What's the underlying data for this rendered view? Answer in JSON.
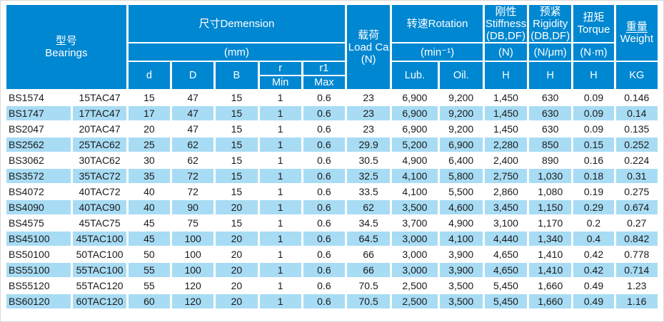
{
  "header": {
    "bearings": "型号\nBearings",
    "dimension": "尺寸Demension",
    "dimension_unit": "(mm)",
    "load": "载荷\nLoad Ca\n(N)",
    "rotation": "转速Rotation",
    "rotation_unit": "(min⁻¹)",
    "stiffness": "刚性\nStiffness\n(DB,DF)",
    "stiffness_unit": "(N)",
    "rigidity": "预紧\nRigidity\n(DB,DF)",
    "rigidity_unit": "(N/μm)",
    "torque": "扭矩\nTorque",
    "torque_unit": "(N·m)",
    "weight_cn": "重量",
    "weight_en": "Weight",
    "sub": {
      "d": "d",
      "D": "D",
      "B": "B",
      "r": "r",
      "r1": "r1",
      "min": "Min",
      "max": "Max",
      "lub": "Lub.",
      "oil": "Oil.",
      "stiffness_h": "H",
      "rigidity_h": "H",
      "torque_h": "H",
      "kg": "KG"
    }
  },
  "chart_data": {
    "type": "table",
    "columns": [
      "型号 Bearings (BS)",
      "型号 Bearings (TAC)",
      "d (mm)",
      "D (mm)",
      "B (mm)",
      "r Min (mm)",
      "r1 Max (mm)",
      "载荷 Load Ca (N)",
      "转速 Rotation Lub. (min⁻¹)",
      "转速 Rotation Oil. (min⁻¹)",
      "刚性 Stiffness H (N)",
      "预紧 Rigidity H (N/μm)",
      "扭矩 Torque H (N·m)",
      "重量 Weight KG"
    ],
    "rows": [
      [
        "BS1574",
        "15TAC47",
        "15",
        "47",
        "15",
        "1",
        "0.6",
        "23",
        "6,900",
        "9,200",
        "1,450",
        "630",
        "0.09",
        "0.146"
      ],
      [
        "BS1747",
        "17TAC47",
        "17",
        "47",
        "15",
        "1",
        "0.6",
        "23",
        "6,900",
        "9,200",
        "1,450",
        "630",
        "0.09",
        "0.14"
      ],
      [
        "BS2047",
        "20TAC47",
        "20",
        "47",
        "15",
        "1",
        "0.6",
        "23",
        "6,900",
        "9,200",
        "1,450",
        "630",
        "0.09",
        "0.135"
      ],
      [
        "BS2562",
        "25TAC62",
        "25",
        "62",
        "15",
        "1",
        "0.6",
        "29.9",
        "5,200",
        "6,900",
        "2,280",
        "850",
        "0.15",
        "0.252"
      ],
      [
        "BS3062",
        "30TAC62",
        "30",
        "62",
        "15",
        "1",
        "0.6",
        "30.5",
        "4,900",
        "6,400",
        "2,400",
        "890",
        "0.16",
        "0.224"
      ],
      [
        "BS3572",
        "35TAC72",
        "35",
        "72",
        "15",
        "1",
        "0.6",
        "32.5",
        "4,100",
        "5,800",
        "2,750",
        "1,030",
        "0.18",
        "0.31"
      ],
      [
        "BS4072",
        "40TAC72",
        "40",
        "72",
        "15",
        "1",
        "0.6",
        "33.5",
        "4,100",
        "5,500",
        "2,860",
        "1,080",
        "0.19",
        "0.275"
      ],
      [
        "BS4090",
        "40TAC90",
        "40",
        "90",
        "20",
        "1",
        "0.6",
        "62",
        "3,500",
        "4,600",
        "3,450",
        "1,150",
        "0.29",
        "0.674"
      ],
      [
        "BS4575",
        "45TAC75",
        "45",
        "75",
        "15",
        "1",
        "0.6",
        "34.5",
        "3,700",
        "4,900",
        "3,100",
        "1,170",
        "0.2",
        "0.27"
      ],
      [
        "BS45100",
        "45TAC100",
        "45",
        "100",
        "20",
        "1",
        "0.6",
        "64.5",
        "3,000",
        "4,100",
        "4,440",
        "1,340",
        "0.4",
        "0.842"
      ],
      [
        "BS50100",
        "50TAC100",
        "50",
        "100",
        "20",
        "1",
        "0.6",
        "66",
        "3,000",
        "3,900",
        "4,650",
        "1,410",
        "0.42",
        "0.778"
      ],
      [
        "BS55100",
        "55TAC100",
        "55",
        "100",
        "20",
        "1",
        "0.6",
        "66",
        "3,000",
        "3,900",
        "4,650",
        "1,410",
        "0.42",
        "0.714"
      ],
      [
        "BS55120",
        "55TAC120",
        "55",
        "120",
        "20",
        "1",
        "0.6",
        "70.5",
        "2,500",
        "3,500",
        "5,450",
        "1,660",
        "0.49",
        "1.23"
      ],
      [
        "BS60120",
        "60TAC120",
        "60",
        "120",
        "20",
        "1",
        "0.6",
        "70.5",
        "2,500",
        "3,500",
        "5,450",
        "1,660",
        "0.49",
        "1.16"
      ]
    ]
  },
  "colors": {
    "header_bg": "#0087d1",
    "header_text": "#ffffff",
    "row_bg": "#ffffff",
    "row_alt_bg": "#a8dcf4",
    "text": "#1a1a1a",
    "frame_border": "#d9d9d9"
  }
}
